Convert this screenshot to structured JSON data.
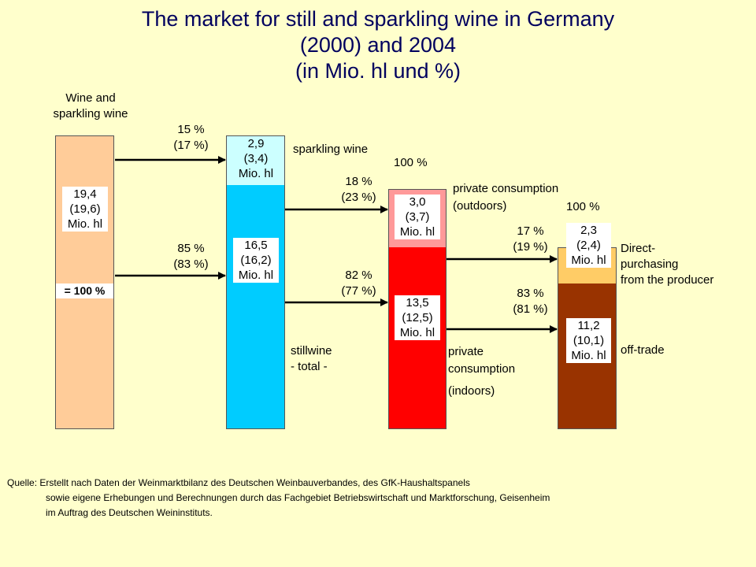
{
  "title": {
    "line1": "The market for still and sparkling wine in Germany",
    "line2": "(2000) and 2004",
    "line3": "(in Mio. hl und %)"
  },
  "colors": {
    "background": "#ffffcc",
    "title": "#00005e",
    "total_bar": "#ffcc99",
    "sparkling": "#ccffff",
    "still": "#00ccff",
    "outdoor": "#ff9999",
    "indoor": "#ff0000",
    "direct": "#ffcc66",
    "offtrade": "#993300"
  },
  "bar_total": {
    "header_line1": "Wine and",
    "header_line2": "sparkling wine",
    "value_line1": "19,4",
    "value_line2": "(19,6)",
    "value_line3": "Mio. hl",
    "base_label": "= 100 %"
  },
  "bar_types": {
    "sparkling_value_line1": "2,9",
    "sparkling_value_line2": "(3,4)",
    "sparkling_value_line3": "Mio. hl",
    "still_value_line1": "16,5",
    "still_value_line2": "(16,2)",
    "still_value_line3": "Mio. hl",
    "sparkling_label": "sparkling wine",
    "still_label_line1": "stillwine",
    "still_label_line2": "- total -"
  },
  "bar_consumption": {
    "hundred_label": "100 %",
    "outdoor_value_line1": "3,0",
    "outdoor_value_line2": "(3,7)",
    "outdoor_value_line3": "Mio. hl",
    "indoor_value_line1": "13,5",
    "indoor_value_line2": "(12,5)",
    "indoor_value_line3": "Mio. hl",
    "outdoor_label_line1": "private consumption",
    "outdoor_label_line2": "(outdoors)",
    "indoor_label_line1": "private",
    "indoor_label_line2": "consumption",
    "indoor_label_line3": "(indoors)"
  },
  "bar_channels": {
    "hundred_label": "100 %",
    "direct_value_line1": "2,3",
    "direct_value_line2": "(2,4)",
    "direct_value_line3": "Mio. hl",
    "offtrade_value_line1": "11,2",
    "offtrade_value_line2": "(10,1)",
    "offtrade_value_line3": "Mio. hl",
    "direct_label_line1": "Direct-",
    "direct_label_line2": "purchasing",
    "direct_label_line3": "from the producer",
    "offtrade_label": "off-trade"
  },
  "arrows": {
    "a1_pct": "15 %",
    "a1_prev": "(17 %)",
    "a2_pct": "85 %",
    "a2_prev": "(83 %)",
    "a3_pct": "18 %",
    "a3_prev": "(23 %)",
    "a4_pct": "82 %",
    "a4_prev": "(77 %)",
    "a5_pct": "17 %",
    "a5_prev": "(19 %)",
    "a6_pct": "83 %",
    "a6_prev": "(81 %)"
  },
  "source": {
    "line1": "Quelle: Erstellt nach Daten der Weinmarktbilanz des Deutschen Weinbauverbandes, des GfK-Haushaltspanels",
    "line2": "sowie eigene Erhebungen und Berechnungen durch das Fachgebiet Betriebswirtschaft und Marktforschung, Geisenheim",
    "line3": "im Auftrag des Deutschen Weininstituts."
  }
}
